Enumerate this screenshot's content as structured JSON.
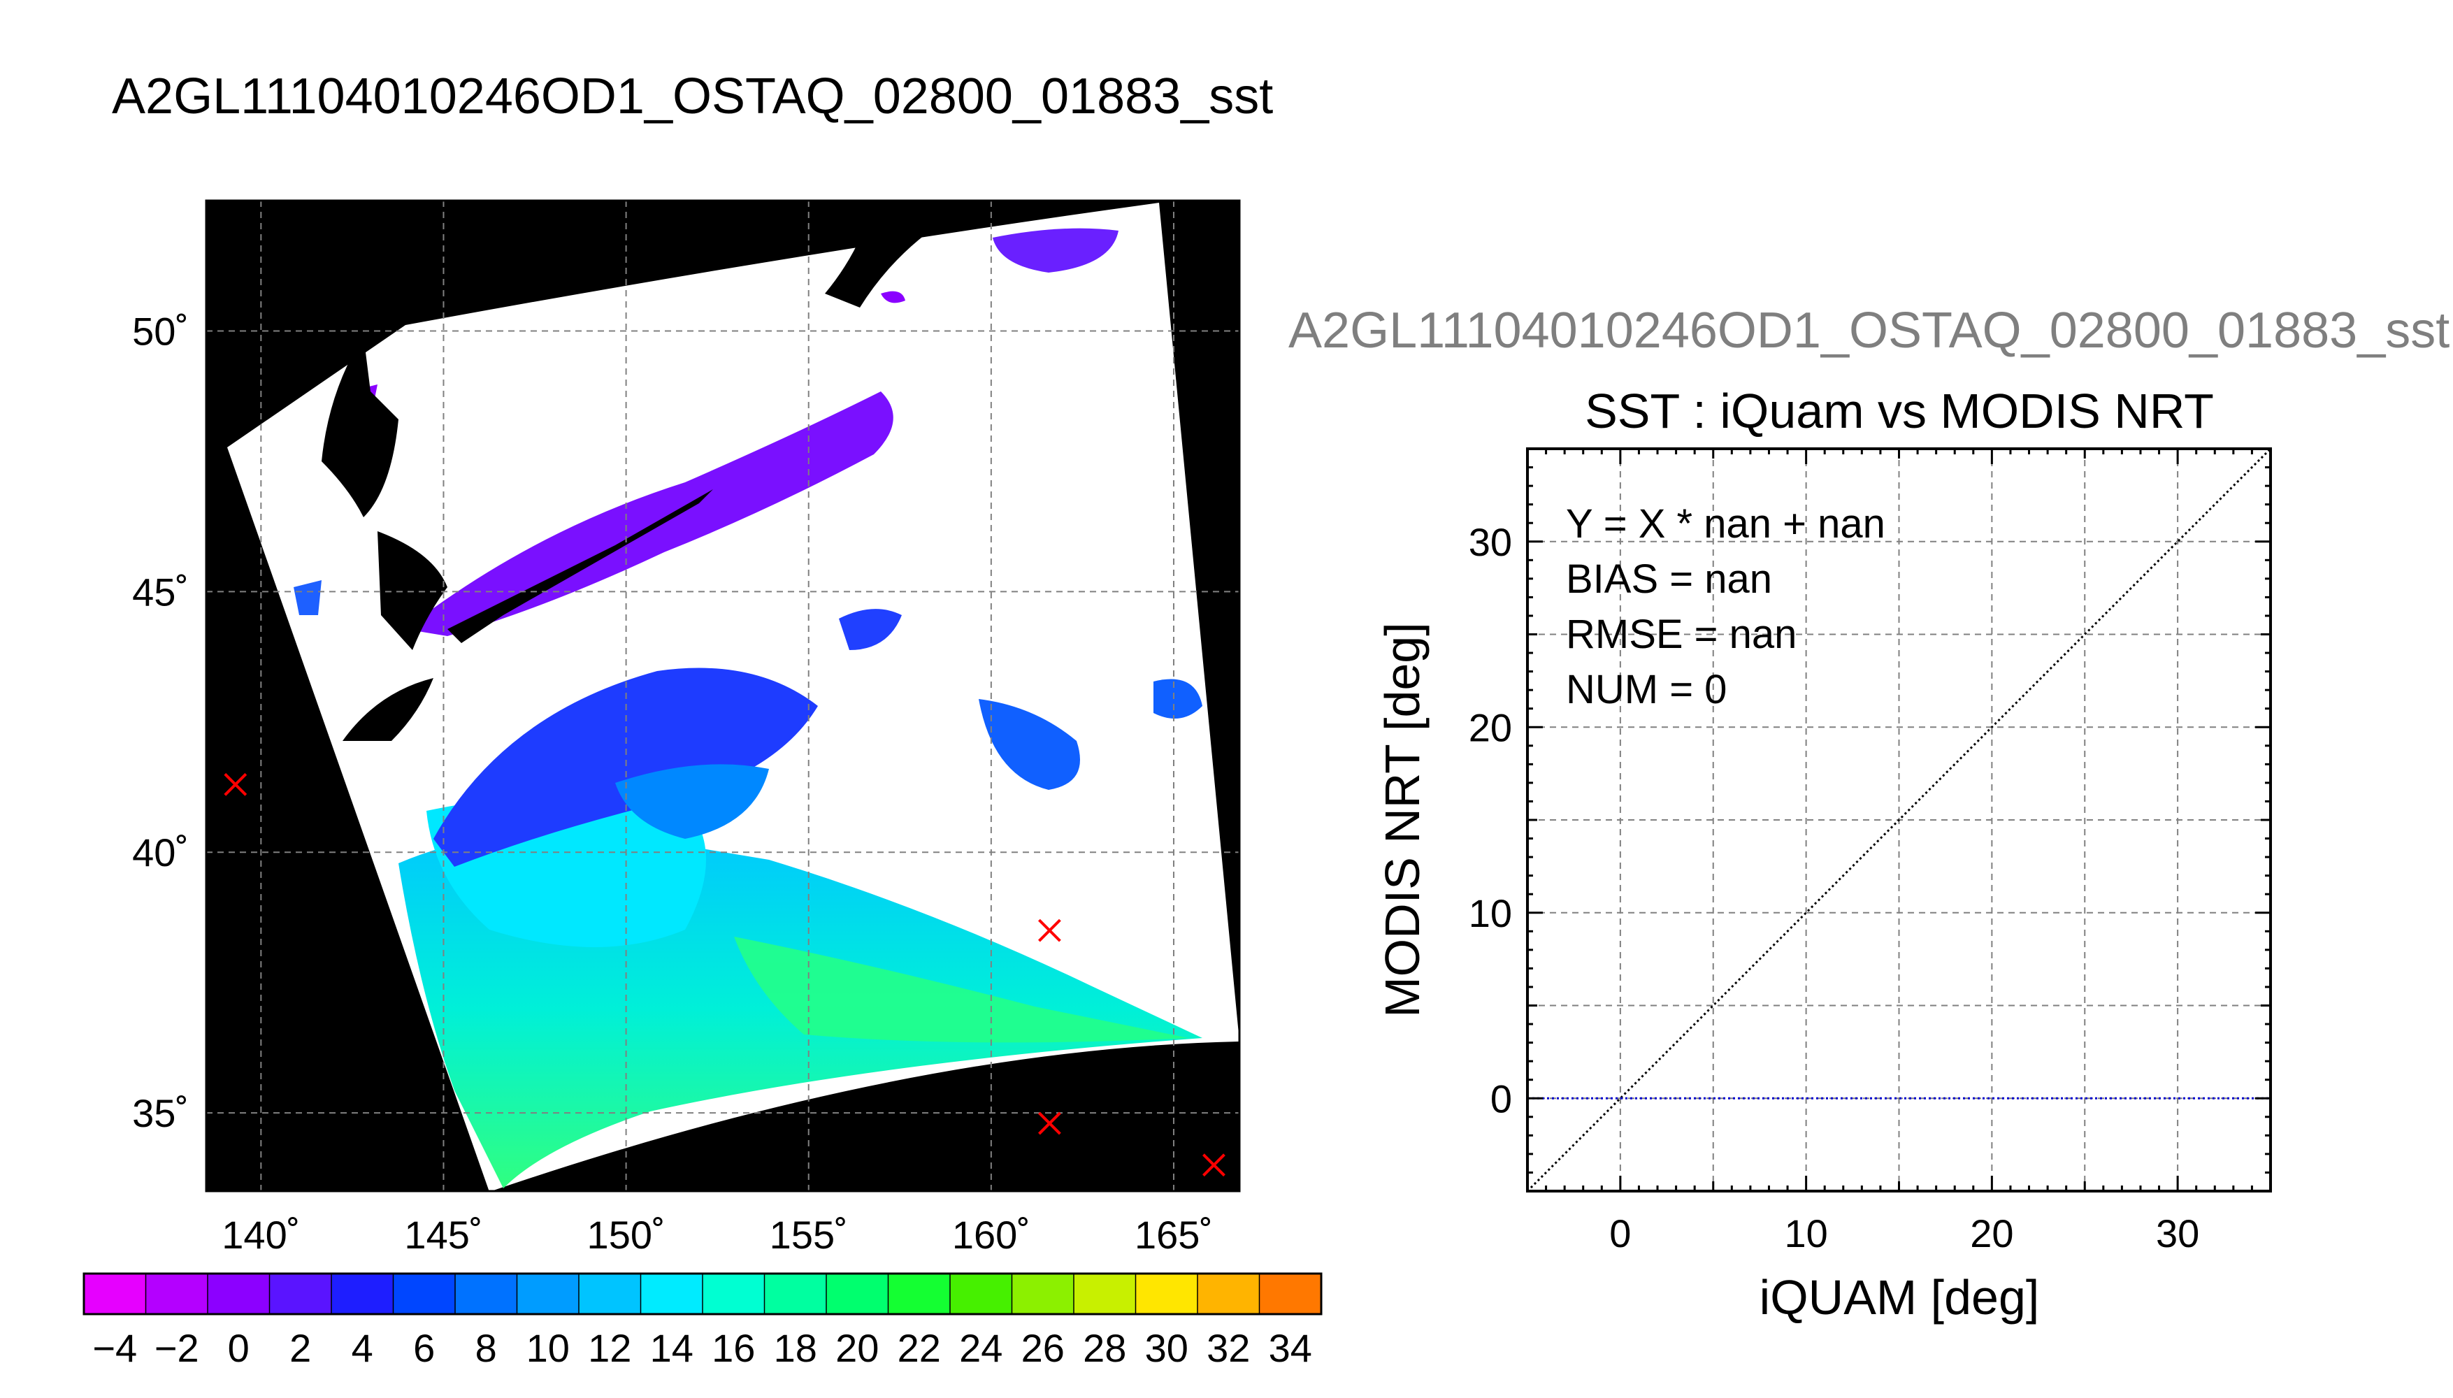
{
  "figure_title": "A2GL11104010246OD1_OSTAQ_02800_01883_sst",
  "map": {
    "lat_ticks": [
      "50˚",
      "45˚",
      "40˚",
      "35˚"
    ],
    "lon_ticks": [
      "140˚",
      "145˚",
      "150˚",
      "155˚",
      "160˚",
      "165˚"
    ],
    "lat_range": [
      33.5,
      52.5
    ],
    "lon_range": [
      138.5,
      166.8
    ],
    "marker_color": "#ff0000",
    "markers": [
      {
        "lon": 139.3,
        "lat": 41.3
      },
      {
        "lon": 161.6,
        "lat": 38.5
      },
      {
        "lon": 161.6,
        "lat": 34.8
      },
      {
        "lon": 166.1,
        "lat": 34.0
      }
    ]
  },
  "colorbar": {
    "labels": [
      "-4",
      "-2",
      "0",
      "2",
      "4",
      "6",
      "8",
      "10",
      "12",
      "14",
      "16",
      "18",
      "20",
      "22",
      "24",
      "26",
      "28",
      "30",
      "32",
      "34"
    ],
    "min": -5,
    "max": 35,
    "step": 2,
    "colors": [
      "#e600ff",
      "#b400ff",
      "#8c00ff",
      "#5a14ff",
      "#1e1eff",
      "#0046ff",
      "#0072ff",
      "#009cff",
      "#00c4ff",
      "#00ebff",
      "#00ffd2",
      "#00ffa0",
      "#00ff6e",
      "#14ff32",
      "#46f000",
      "#8cf000",
      "#c8f000",
      "#ffe600",
      "#ffb400",
      "#ff7800",
      "#ff3c00"
    ]
  },
  "plot_header": "A2GL11104010246OD1_OSTAQ_02800_01883_sst",
  "chart_data": {
    "type": "scatter",
    "title": "SST : iQuam vs MODIS NRT",
    "xlabel": "iQUAM [deg]",
    "ylabel": "MODIS NRT [deg]",
    "xlim": [
      -5,
      35
    ],
    "ylim": [
      -5,
      35
    ],
    "x_ticks": [
      "0",
      "10",
      "20",
      "30"
    ],
    "y_ticks": [
      "0",
      "10",
      "20",
      "30"
    ],
    "grid": true,
    "series": [],
    "reference_lines": [
      {
        "kind": "identity",
        "from": [
          -5,
          -5
        ],
        "to": [
          35,
          35
        ],
        "color": "#000000",
        "style": "dotted"
      },
      {
        "kind": "horizontal",
        "y": 0,
        "color": "#0000cc",
        "style": "dotted"
      }
    ],
    "annotations": [
      "Y = X * nan + nan",
      "BIAS = nan",
      "RMSE = nan",
      "NUM = 0"
    ]
  }
}
